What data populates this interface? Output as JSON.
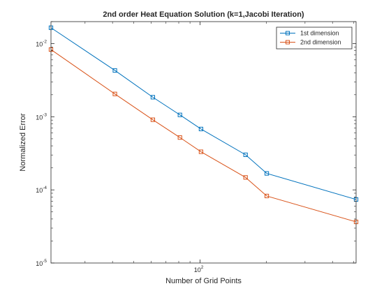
{
  "chart_data": {
    "type": "line",
    "title": "2nd order Heat Equation Solution (k=1,Jacobi Iteration)",
    "xlabel": "Number of Grid Points",
    "ylabel": "Normalized Error",
    "xscale": "log",
    "yscale": "log",
    "xlim": [
      21,
      512
    ],
    "ylim": [
      1e-05,
      0.02
    ],
    "x_ticks": [
      {
        "value": 100,
        "label": "10",
        "exponent": "2"
      }
    ],
    "y_ticks": [
      {
        "value": 1e-05,
        "label": "10",
        "exponent": "-5"
      },
      {
        "value": 0.0001,
        "label": "10",
        "exponent": "-4"
      },
      {
        "value": 0.001,
        "label": "10",
        "exponent": "-3"
      },
      {
        "value": 0.01,
        "label": "10",
        "exponent": "-2"
      }
    ],
    "grid": false,
    "legend_position": "top-right",
    "marker": "square",
    "series": [
      {
        "name": "1st dimension",
        "color": "#0072BD",
        "x": [
          21,
          41,
          61,
          81,
          101,
          161,
          201,
          512
        ],
        "y": [
          0.0165,
          0.0043,
          0.00185,
          0.00106,
          0.00068,
          0.000302,
          0.000168,
          7.4e-05
        ]
      },
      {
        "name": "2nd dimension",
        "color": "#D95319",
        "x": [
          21,
          41,
          61,
          81,
          101,
          161,
          201,
          512
        ],
        "y": [
          0.0083,
          0.00205,
          0.00091,
          0.00052,
          0.000332,
          0.000148,
          8.25e-05,
          3.65e-05
        ]
      }
    ]
  }
}
